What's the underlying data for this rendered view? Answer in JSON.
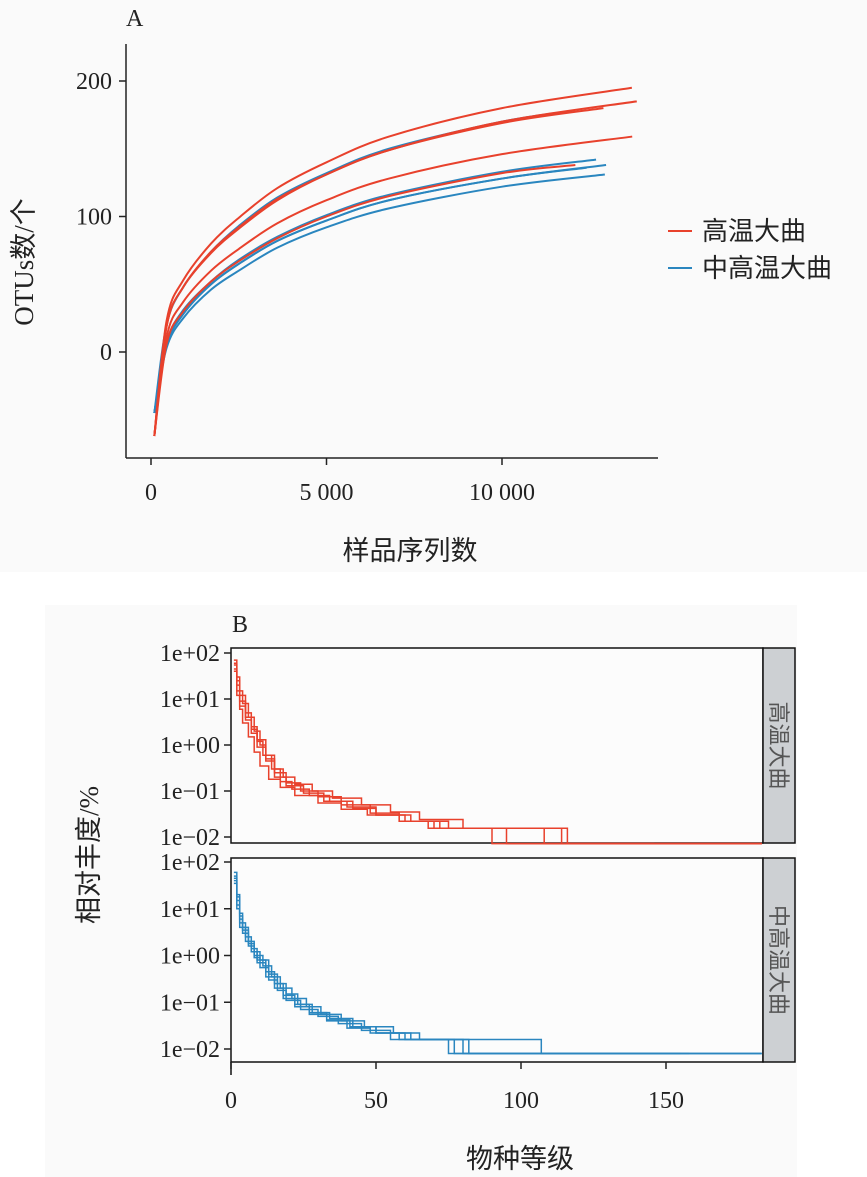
{
  "colors": {
    "high_temp": "#e8412c",
    "mid_high_temp": "#2a86bf",
    "strip": "#cdd0d3"
  },
  "chart_data": [
    {
      "panel": "A",
      "type": "line",
      "xlabel": "样品序列数",
      "ylabel": "OTUs数/个",
      "xticks": [
        0,
        5000,
        10000
      ],
      "xtick_labels": [
        "0",
        "5 000",
        "10 000"
      ],
      "yticks": [
        0,
        100,
        200
      ],
      "ytick_labels": [
        "0",
        "100",
        "200"
      ],
      "xlim": [
        -700,
        14500
      ],
      "ylim": [
        -80,
        220
      ],
      "legend": {
        "placement": "right",
        "entries": [
          {
            "label": "高温大曲",
            "group": "high_temp"
          },
          {
            "label": "中高温大曲",
            "group": "mid_high_temp"
          }
        ]
      },
      "series": [
        {
          "group": "mid_high_temp",
          "x": [
            95,
            444,
            920,
            1710,
            2500,
            3600,
            5000,
            6780,
            10000,
            12010
          ],
          "y": [
            -45,
            20,
            48,
            74,
            93,
            114,
            132,
            150,
            170,
            178
          ]
        },
        {
          "group": "mid_high_temp",
          "x": [
            95,
            444,
            920,
            1710,
            2500,
            3600,
            5000,
            6780,
            10000,
            12680
          ],
          "y": [
            -45,
            7,
            31,
            52,
            68,
            85,
            101,
            116,
            133,
            142
          ]
        },
        {
          "group": "mid_high_temp",
          "x": [
            95,
            444,
            920,
            1710,
            2500,
            3600,
            5000,
            6780,
            10000,
            12965
          ],
          "y": [
            -45,
            5,
            29,
            50,
            65,
            82,
            97,
            112,
            128,
            138
          ]
        },
        {
          "group": "mid_high_temp",
          "x": [
            95,
            444,
            920,
            1710,
            2500,
            3600,
            5000,
            6780,
            10000,
            12410
          ],
          "y": [
            -45,
            5,
            28,
            50,
            65,
            82,
            97,
            112,
            128,
            136
          ]
        },
        {
          "group": "mid_high_temp",
          "x": [
            95,
            444,
            920,
            1710,
            2500,
            3600,
            5000,
            6780,
            10000,
            12930
          ],
          "y": [
            -45,
            3,
            25,
            46,
            60,
            77,
            92,
            106,
            122,
            131
          ]
        },
        {
          "group": "high_temp",
          "x": [
            95,
            444,
            920,
            1710,
            2500,
            3600,
            5000,
            6780,
            10000,
            13700
          ],
          "y": [
            -62,
            23,
            53,
            80,
            99,
            121,
            140,
            159,
            180,
            195
          ]
        },
        {
          "group": "high_temp",
          "x": [
            95,
            444,
            920,
            1710,
            2500,
            3600,
            5000,
            6780,
            10000,
            13840
          ],
          "y": [
            -62,
            19,
            48,
            74,
            92,
            113,
            131,
            149,
            170,
            185
          ]
        },
        {
          "group": "high_temp",
          "x": [
            95,
            444,
            920,
            1710,
            2500,
            3600,
            5000,
            6780,
            10000,
            12890
          ],
          "y": [
            -62,
            19,
            48,
            73,
            91,
            112,
            131,
            149,
            169,
            180
          ]
        },
        {
          "group": "high_temp",
          "x": [
            95,
            444,
            920,
            1710,
            2500,
            3600,
            5000,
            6780,
            10000,
            13710
          ],
          "y": [
            -62,
            11,
            37,
            60,
            76,
            95,
            112,
            128,
            146,
            159
          ]
        },
        {
          "group": "high_temp",
          "x": [
            95,
            444,
            920,
            1710,
            2500,
            3600,
            5000,
            6780,
            10000,
            12090
          ],
          "y": [
            -62,
            6,
            30,
            52,
            67,
            84,
            100,
            115,
            132,
            138
          ]
        }
      ]
    },
    {
      "panel": "B",
      "type": "line",
      "step": true,
      "xlabel": "物种等级",
      "ylabel": "相对丰度/%",
      "yscale": "log10",
      "xticks": [
        0,
        50,
        100,
        150
      ],
      "xtick_labels": [
        "0",
        "50",
        "100",
        "150"
      ],
      "yticks": [
        100,
        10,
        1,
        0.1,
        0.01
      ],
      "ytick_labels": [
        "1e+02",
        "1e+01",
        "1e+00",
        "1e−01",
        "1e−02"
      ],
      "xlim": [
        0,
        183
      ],
      "ylim": [
        0.005,
        130
      ],
      "facets": [
        {
          "label": "高温大曲",
          "group": "high_temp",
          "series": [
            [
              [
                1,
                70
              ],
              [
                2,
                30
              ],
              [
                3,
                15
              ],
              [
                4,
                8
              ],
              [
                6,
                4
              ],
              [
                8,
                2
              ],
              [
                10,
                1
              ],
              [
                12,
                0.6
              ],
              [
                15,
                0.3
              ],
              [
                18,
                0.2
              ],
              [
                22,
                0.14
              ],
              [
                28,
                0.1
              ],
              [
                35,
                0.07
              ],
              [
                45,
                0.05
              ],
              [
                55,
                0.035
              ],
              [
                65,
                0.024
              ],
              [
                80,
                0.0155
              ],
              [
                116,
                0.0072
              ],
              [
                183,
                0.0072
              ]
            ],
            [
              [
                1,
                55
              ],
              [
                2,
                20
              ],
              [
                3,
                9
              ],
              [
                5,
                4
              ],
              [
                7,
                2.2
              ],
              [
                9,
                1.2
              ],
              [
                11,
                0.6
              ],
              [
                14,
                0.3
              ],
              [
                17,
                0.16
              ],
              [
                21,
                0.11
              ],
              [
                27,
                0.08
              ],
              [
                34,
                0.06
              ],
              [
                42,
                0.042
              ],
              [
                50,
                0.03
              ],
              [
                60,
                0.022
              ],
              [
                72,
                0.0155
              ],
              [
                114,
                0.0072
              ],
              [
                146,
                0.0072
              ]
            ],
            [
              [
                1,
                40
              ],
              [
                2,
                12
              ],
              [
                3,
                6
              ],
              [
                4,
                3
              ],
              [
                6,
                1.5
              ],
              [
                8,
                0.7
              ],
              [
                10,
                0.35
              ],
              [
                13,
                0.18
              ],
              [
                17,
                0.12
              ],
              [
                22,
                0.08
              ],
              [
                30,
                0.055
              ],
              [
                38,
                0.04
              ],
              [
                47,
                0.03
              ],
              [
                58,
                0.022
              ],
              [
                68,
                0.0155
              ],
              [
                90,
                0.0072
              ],
              [
                183,
                0.0072
              ]
            ],
            [
              [
                1,
                60
              ],
              [
                2,
                25
              ],
              [
                3,
                12
              ],
              [
                5,
                5
              ],
              [
                7,
                2.5
              ],
              [
                9,
                1.3
              ],
              [
                12,
                0.5
              ],
              [
                15,
                0.25
              ],
              [
                19,
                0.15
              ],
              [
                24,
                0.1
              ],
              [
                30,
                0.075
              ],
              [
                38,
                0.05
              ],
              [
                48,
                0.033
              ],
              [
                58,
                0.022
              ],
              [
                70,
                0.0155
              ],
              [
                95,
                0.0072
              ],
              [
                183,
                0.0072
              ]
            ],
            [
              [
                1,
                45
              ],
              [
                2,
                15
              ],
              [
                3,
                7
              ],
              [
                5,
                3.5
              ],
              [
                7,
                1.8
              ],
              [
                9,
                0.9
              ],
              [
                12,
                0.45
              ],
              [
                15,
                0.2
              ],
              [
                19,
                0.13
              ],
              [
                25,
                0.09
              ],
              [
                32,
                0.06
              ],
              [
                40,
                0.045
              ],
              [
                50,
                0.03
              ],
              [
                62,
                0.022
              ],
              [
                75,
                0.0155
              ],
              [
                108,
                0.0072
              ],
              [
                183,
                0.0072
              ]
            ]
          ]
        },
        {
          "label": "中高温大曲",
          "group": "mid_high_temp",
          "series": [
            [
              [
                1,
                60
              ],
              [
                2,
                20
              ],
              [
                3,
                8
              ],
              [
                4,
                4
              ],
              [
                6,
                2
              ],
              [
                8,
                1.2
              ],
              [
                10,
                0.8
              ],
              [
                13,
                0.4
              ],
              [
                16,
                0.25
              ],
              [
                19,
                0.15
              ],
              [
                23,
                0.09
              ],
              [
                28,
                0.06
              ],
              [
                34,
                0.045
              ],
              [
                42,
                0.03
              ],
              [
                50,
                0.022
              ],
              [
                62,
                0.016
              ],
              [
                107,
                0.008
              ],
              [
                183,
                0.008
              ]
            ],
            [
              [
                1,
                45
              ],
              [
                2,
                15
              ],
              [
                3,
                6
              ],
              [
                4,
                3
              ],
              [
                6,
                1.6
              ],
              [
                8,
                0.9
              ],
              [
                10,
                0.55
              ],
              [
                13,
                0.3
              ],
              [
                16,
                0.18
              ],
              [
                19,
                0.11
              ],
              [
                24,
                0.07
              ],
              [
                30,
                0.05
              ],
              [
                37,
                0.035
              ],
              [
                45,
                0.025
              ],
              [
                55,
                0.016
              ],
              [
                75,
                0.008
              ],
              [
                155,
                0.008
              ]
            ],
            [
              [
                1,
                35
              ],
              [
                2,
                10
              ],
              [
                3,
                4
              ],
              [
                5,
                2
              ],
              [
                7,
                1.2
              ],
              [
                9,
                0.7
              ],
              [
                12,
                0.35
              ],
              [
                15,
                0.2
              ],
              [
                18,
                0.12
              ],
              [
                22,
                0.08
              ],
              [
                27,
                0.055
              ],
              [
                33,
                0.04
              ],
              [
                40,
                0.028
              ],
              [
                48,
                0.022
              ],
              [
                58,
                0.016
              ],
              [
                77,
                0.008
              ],
              [
                158,
                0.008
              ]
            ],
            [
              [
                1,
                50
              ],
              [
                2,
                18
              ],
              [
                3,
                7
              ],
              [
                4,
                3.5
              ],
              [
                6,
                1.8
              ],
              [
                8,
                1
              ],
              [
                11,
                0.6
              ],
              [
                14,
                0.35
              ],
              [
                17,
                0.2
              ],
              [
                21,
                0.12
              ],
              [
                26,
                0.08
              ],
              [
                31,
                0.055
              ],
              [
                38,
                0.04
              ],
              [
                46,
                0.03
              ],
              [
                56,
                0.022
              ],
              [
                65,
                0.016
              ],
              [
                80,
                0.008
              ],
              [
                183,
                0.008
              ]
            ],
            [
              [
                1,
                40
              ],
              [
                2,
                12
              ],
              [
                3,
                5
              ],
              [
                5,
                2.5
              ],
              [
                7,
                1.4
              ],
              [
                9,
                0.8
              ],
              [
                12,
                0.45
              ],
              [
                15,
                0.25
              ],
              [
                18,
                0.14
              ],
              [
                22,
                0.09
              ],
              [
                27,
                0.06
              ],
              [
                33,
                0.042
              ],
              [
                41,
                0.03
              ],
              [
                50,
                0.022
              ],
              [
                60,
                0.016
              ],
              [
                82,
                0.008
              ],
              [
                183,
                0.008
              ]
            ]
          ]
        }
      ]
    }
  ]
}
